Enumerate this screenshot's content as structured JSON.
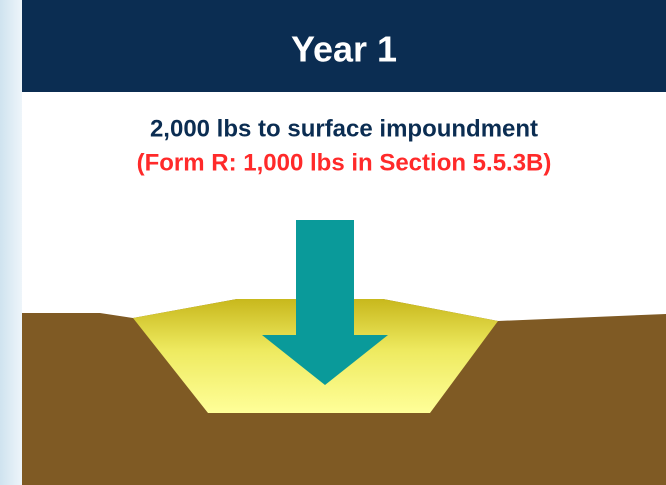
{
  "header": {
    "title": "Year 1"
  },
  "caption": {
    "line1": "2,000 lbs to surface impoundment",
    "line2": "(Form R: 1,000 lbs in Section 5.5.3B)"
  }
}
